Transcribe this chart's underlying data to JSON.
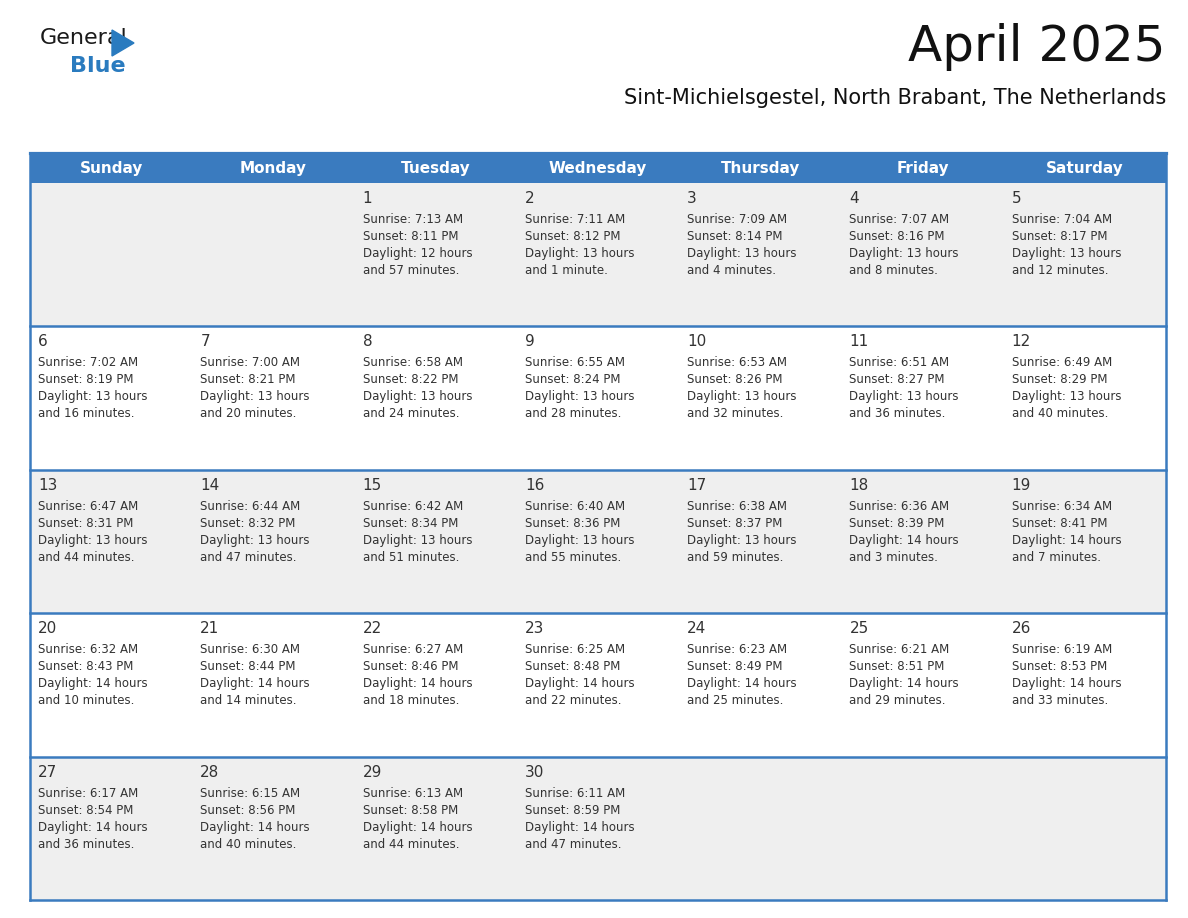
{
  "title": "April 2025",
  "subtitle": "Sint-Michielsgestel, North Brabant, The Netherlands",
  "days_of_week": [
    "Sunday",
    "Monday",
    "Tuesday",
    "Wednesday",
    "Thursday",
    "Friday",
    "Saturday"
  ],
  "header_bg": "#3a7bbf",
  "header_text": "#ffffff",
  "odd_row_bg": "#efefef",
  "even_row_bg": "#ffffff",
  "separator_color": "#3a7bbf",
  "text_color": "#333333",
  "weeks": [
    [
      {
        "day": null,
        "text": ""
      },
      {
        "day": null,
        "text": ""
      },
      {
        "day": 1,
        "sunrise": "Sunrise: 7:13 AM",
        "sunset": "Sunset: 8:11 PM",
        "daylight": "Daylight: 12 hours",
        "daylight2": "and 57 minutes."
      },
      {
        "day": 2,
        "sunrise": "Sunrise: 7:11 AM",
        "sunset": "Sunset: 8:12 PM",
        "daylight": "Daylight: 13 hours",
        "daylight2": "and 1 minute."
      },
      {
        "day": 3,
        "sunrise": "Sunrise: 7:09 AM",
        "sunset": "Sunset: 8:14 PM",
        "daylight": "Daylight: 13 hours",
        "daylight2": "and 4 minutes."
      },
      {
        "day": 4,
        "sunrise": "Sunrise: 7:07 AM",
        "sunset": "Sunset: 8:16 PM",
        "daylight": "Daylight: 13 hours",
        "daylight2": "and 8 minutes."
      },
      {
        "day": 5,
        "sunrise": "Sunrise: 7:04 AM",
        "sunset": "Sunset: 8:17 PM",
        "daylight": "Daylight: 13 hours",
        "daylight2": "and 12 minutes."
      }
    ],
    [
      {
        "day": 6,
        "sunrise": "Sunrise: 7:02 AM",
        "sunset": "Sunset: 8:19 PM",
        "daylight": "Daylight: 13 hours",
        "daylight2": "and 16 minutes."
      },
      {
        "day": 7,
        "sunrise": "Sunrise: 7:00 AM",
        "sunset": "Sunset: 8:21 PM",
        "daylight": "Daylight: 13 hours",
        "daylight2": "and 20 minutes."
      },
      {
        "day": 8,
        "sunrise": "Sunrise: 6:58 AM",
        "sunset": "Sunset: 8:22 PM",
        "daylight": "Daylight: 13 hours",
        "daylight2": "and 24 minutes."
      },
      {
        "day": 9,
        "sunrise": "Sunrise: 6:55 AM",
        "sunset": "Sunset: 8:24 PM",
        "daylight": "Daylight: 13 hours",
        "daylight2": "and 28 minutes."
      },
      {
        "day": 10,
        "sunrise": "Sunrise: 6:53 AM",
        "sunset": "Sunset: 8:26 PM",
        "daylight": "Daylight: 13 hours",
        "daylight2": "and 32 minutes."
      },
      {
        "day": 11,
        "sunrise": "Sunrise: 6:51 AM",
        "sunset": "Sunset: 8:27 PM",
        "daylight": "Daylight: 13 hours",
        "daylight2": "and 36 minutes."
      },
      {
        "day": 12,
        "sunrise": "Sunrise: 6:49 AM",
        "sunset": "Sunset: 8:29 PM",
        "daylight": "Daylight: 13 hours",
        "daylight2": "and 40 minutes."
      }
    ],
    [
      {
        "day": 13,
        "sunrise": "Sunrise: 6:47 AM",
        "sunset": "Sunset: 8:31 PM",
        "daylight": "Daylight: 13 hours",
        "daylight2": "and 44 minutes."
      },
      {
        "day": 14,
        "sunrise": "Sunrise: 6:44 AM",
        "sunset": "Sunset: 8:32 PM",
        "daylight": "Daylight: 13 hours",
        "daylight2": "and 47 minutes."
      },
      {
        "day": 15,
        "sunrise": "Sunrise: 6:42 AM",
        "sunset": "Sunset: 8:34 PM",
        "daylight": "Daylight: 13 hours",
        "daylight2": "and 51 minutes."
      },
      {
        "day": 16,
        "sunrise": "Sunrise: 6:40 AM",
        "sunset": "Sunset: 8:36 PM",
        "daylight": "Daylight: 13 hours",
        "daylight2": "and 55 minutes."
      },
      {
        "day": 17,
        "sunrise": "Sunrise: 6:38 AM",
        "sunset": "Sunset: 8:37 PM",
        "daylight": "Daylight: 13 hours",
        "daylight2": "and 59 minutes."
      },
      {
        "day": 18,
        "sunrise": "Sunrise: 6:36 AM",
        "sunset": "Sunset: 8:39 PM",
        "daylight": "Daylight: 14 hours",
        "daylight2": "and 3 minutes."
      },
      {
        "day": 19,
        "sunrise": "Sunrise: 6:34 AM",
        "sunset": "Sunset: 8:41 PM",
        "daylight": "Daylight: 14 hours",
        "daylight2": "and 7 minutes."
      }
    ],
    [
      {
        "day": 20,
        "sunrise": "Sunrise: 6:32 AM",
        "sunset": "Sunset: 8:43 PM",
        "daylight": "Daylight: 14 hours",
        "daylight2": "and 10 minutes."
      },
      {
        "day": 21,
        "sunrise": "Sunrise: 6:30 AM",
        "sunset": "Sunset: 8:44 PM",
        "daylight": "Daylight: 14 hours",
        "daylight2": "and 14 minutes."
      },
      {
        "day": 22,
        "sunrise": "Sunrise: 6:27 AM",
        "sunset": "Sunset: 8:46 PM",
        "daylight": "Daylight: 14 hours",
        "daylight2": "and 18 minutes."
      },
      {
        "day": 23,
        "sunrise": "Sunrise: 6:25 AM",
        "sunset": "Sunset: 8:48 PM",
        "daylight": "Daylight: 14 hours",
        "daylight2": "and 22 minutes."
      },
      {
        "day": 24,
        "sunrise": "Sunrise: 6:23 AM",
        "sunset": "Sunset: 8:49 PM",
        "daylight": "Daylight: 14 hours",
        "daylight2": "and 25 minutes."
      },
      {
        "day": 25,
        "sunrise": "Sunrise: 6:21 AM",
        "sunset": "Sunset: 8:51 PM",
        "daylight": "Daylight: 14 hours",
        "daylight2": "and 29 minutes."
      },
      {
        "day": 26,
        "sunrise": "Sunrise: 6:19 AM",
        "sunset": "Sunset: 8:53 PM",
        "daylight": "Daylight: 14 hours",
        "daylight2": "and 33 minutes."
      }
    ],
    [
      {
        "day": 27,
        "sunrise": "Sunrise: 6:17 AM",
        "sunset": "Sunset: 8:54 PM",
        "daylight": "Daylight: 14 hours",
        "daylight2": "and 36 minutes."
      },
      {
        "day": 28,
        "sunrise": "Sunrise: 6:15 AM",
        "sunset": "Sunset: 8:56 PM",
        "daylight": "Daylight: 14 hours",
        "daylight2": "and 40 minutes."
      },
      {
        "day": 29,
        "sunrise": "Sunrise: 6:13 AM",
        "sunset": "Sunset: 8:58 PM",
        "daylight": "Daylight: 14 hours",
        "daylight2": "and 44 minutes."
      },
      {
        "day": 30,
        "sunrise": "Sunrise: 6:11 AM",
        "sunset": "Sunset: 8:59 PM",
        "daylight": "Daylight: 14 hours",
        "daylight2": "and 47 minutes."
      },
      {
        "day": null,
        "text": ""
      },
      {
        "day": null,
        "text": ""
      },
      {
        "day": null,
        "text": ""
      }
    ]
  ],
  "logo_color_general": "#1a1a1a",
  "logo_color_blue": "#2a7bbf",
  "logo_triangle_color": "#2a7bbf"
}
